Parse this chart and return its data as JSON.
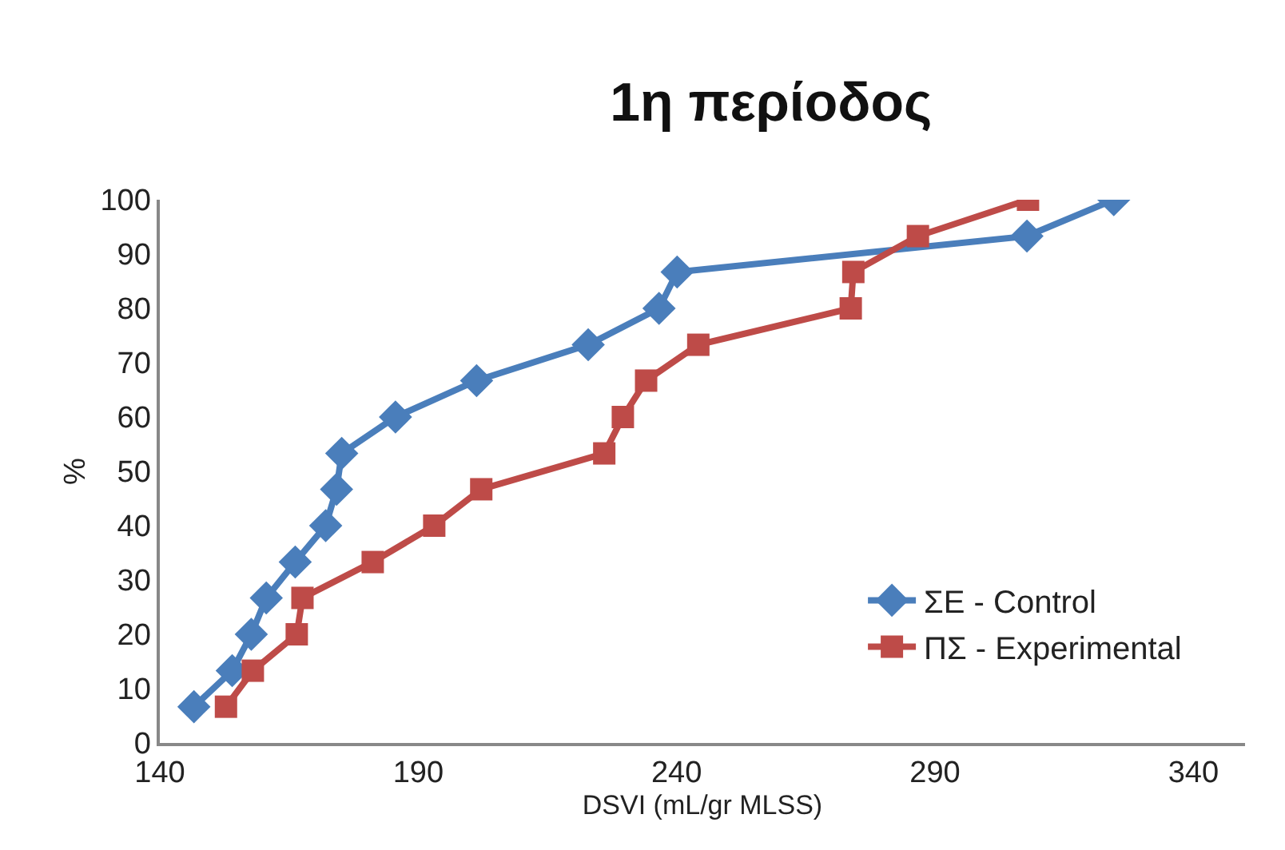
{
  "chart_data": {
    "type": "line",
    "title": "1η περίοδος",
    "xlabel": "DSVI (mL/gr MLSS)",
    "ylabel": "%",
    "series": [
      {
        "name": "ΣΕ - Control",
        "color": "#4a7ebb",
        "marker": "diamond",
        "x": [
          146.6,
          154,
          157.7,
          160.6,
          166.2,
          172.1,
          174.2,
          175.2,
          185.6,
          201.3,
          222.9,
          236.6,
          240.1,
          307.8,
          324.6
        ],
        "values": [
          6.67,
          13.3,
          20,
          26.7,
          33.3,
          40,
          46.7,
          53.3,
          60,
          66.7,
          73.3,
          80,
          86.7,
          93.3,
          100
        ]
      },
      {
        "name": "ΠΣ - Experimental",
        "color": "#be4b48",
        "marker": "square",
        "x": [
          152.8,
          158,
          166.5,
          167.6,
          181.2,
          193.1,
          202.2,
          226,
          229.6,
          234.1,
          244.2,
          273.7,
          274.2,
          286.7,
          308
        ],
        "values": [
          6.67,
          13.3,
          20,
          26.7,
          33.3,
          40,
          46.7,
          53.3,
          60,
          66.7,
          73.3,
          80,
          86.7,
          93.3,
          100
        ]
      }
    ],
    "xlim": [
      140,
      350
    ],
    "xticks": [
      140,
      190,
      240,
      290,
      340
    ],
    "ylim": [
      0,
      100
    ],
    "yticks": [
      0,
      10,
      20,
      30,
      40,
      50,
      60,
      70,
      80,
      90,
      100
    ],
    "grid": false,
    "legend": "bottom right",
    "line_style": "solid"
  }
}
